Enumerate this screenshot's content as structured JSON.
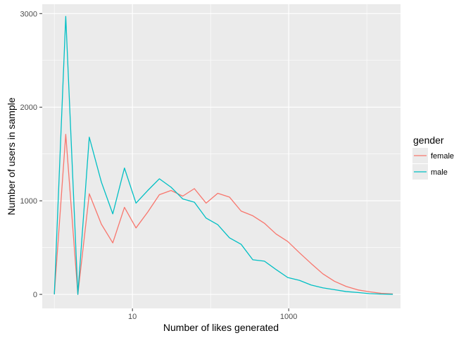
{
  "chart_data": {
    "type": "line",
    "xscale": "log10",
    "xlabel": "Number of likes generated",
    "ylabel": "Number of users in sample",
    "xlim": [
      0.7,
      27000
    ],
    "ylim": [
      -150,
      3100
    ],
    "x_ticks": [
      10,
      1000
    ],
    "x_tick_labels": [
      "10",
      "1000"
    ],
    "y_ticks": [
      0,
      1000,
      2000,
      3000
    ],
    "y_tick_labels": [
      "0",
      "1000",
      "2000",
      "3000"
    ],
    "grid": true,
    "panel_background": "#ebebeb",
    "legend": {
      "title": "gender",
      "position": "right"
    },
    "series": [
      {
        "name": "female",
        "color": "#f8766d",
        "x": [
          1.0,
          1.4,
          2.0,
          2.8,
          4.0,
          5.6,
          7.9,
          11.1,
          15.7,
          22.1,
          31.2,
          44,
          62,
          87.6,
          123.6,
          174.4,
          246,
          347,
          489,
          690,
          973,
          1373,
          1937,
          2733,
          3855,
          5438,
          7672,
          10823,
          15268,
          21538
        ],
        "y": [
          0,
          1710,
          0,
          1075,
          750,
          550,
          930,
          710,
          880,
          1065,
          1110,
          1050,
          1130,
          975,
          1080,
          1040,
          890,
          840,
          760,
          645,
          565,
          445,
          330,
          220,
          140,
          85,
          48,
          28,
          12,
          5
        ]
      },
      {
        "name": "male",
        "color": "#00bfc4",
        "x": [
          1.0,
          1.4,
          2.0,
          2.8,
          4.0,
          5.6,
          7.9,
          11.1,
          15.7,
          22.1,
          31.2,
          44,
          62,
          87.6,
          123.6,
          174.4,
          246,
          347,
          489,
          690,
          973,
          1373,
          1937,
          2733,
          3855,
          5438,
          7672,
          10823,
          15268,
          21538
        ],
        "y": [
          0,
          2970,
          0,
          1680,
          1200,
          860,
          1350,
          975,
          1110,
          1235,
          1145,
          1020,
          985,
          815,
          745,
          605,
          535,
          370,
          355,
          265,
          180,
          150,
          100,
          70,
          50,
          30,
          20,
          8,
          3,
          1
        ]
      }
    ]
  }
}
